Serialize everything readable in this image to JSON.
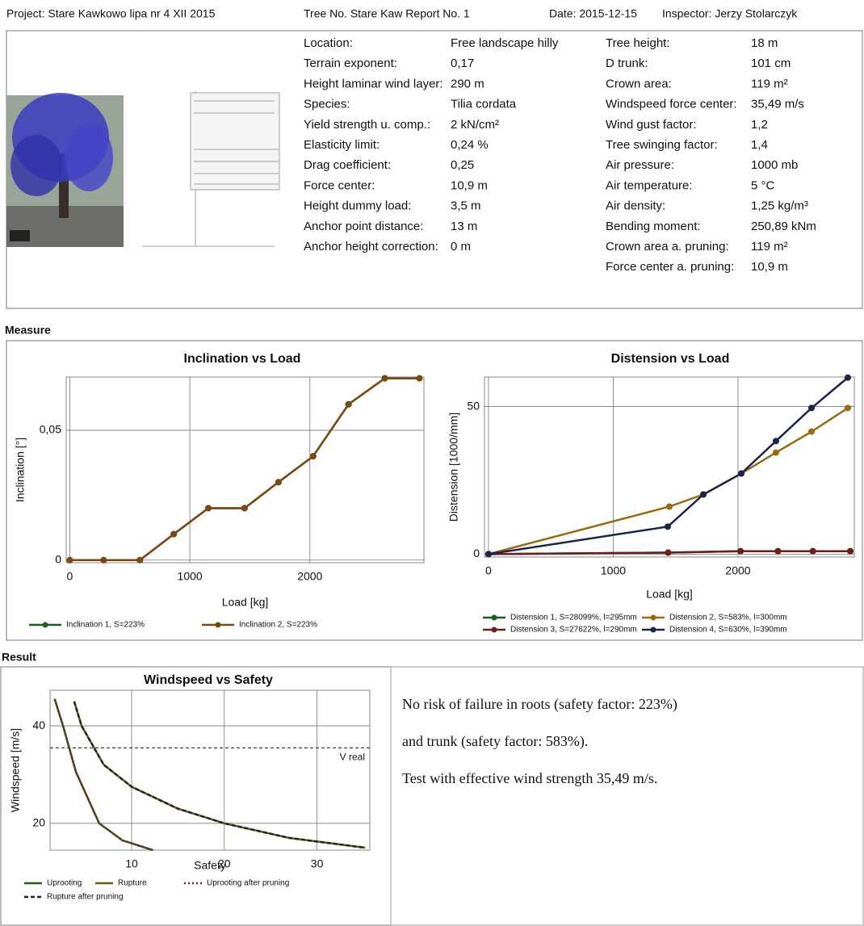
{
  "header": {
    "project": "Project: Stare Kawkowo lipa nr 4 XII 2015",
    "report": "Tree No. Stare Kaw Report No. 1",
    "date": "Date: 2015-12-15",
    "inspector": "Inspector: Jerzy Stolarczyk"
  },
  "params_left": [
    [
      "Location:",
      "Free landscape hilly"
    ],
    [
      "Terrain exponent:",
      "0,17"
    ],
    [
      "Height laminar wind layer:",
      "290 m"
    ],
    [
      "Species:",
      "Tilia cordata"
    ],
    [
      "Yield strength u. comp.:",
      "2 kN/cm²"
    ],
    [
      "Elasticity limit:",
      "0,24 %"
    ],
    [
      "Drag coefficient:",
      "0,25"
    ],
    [
      "Force center:",
      "10,9 m"
    ],
    [
      "Height dummy load:",
      "3,5 m"
    ],
    [
      "Anchor point distance:",
      "13 m"
    ],
    [
      "Anchor height correction:",
      "0 m"
    ]
  ],
  "params_right": [
    [
      "Tree height:",
      "18 m"
    ],
    [
      "D trunk:",
      "101 cm"
    ],
    [
      "Crown area:",
      "119 m²"
    ],
    [
      "Windspeed force center:",
      "35,49 m/s"
    ],
    [
      "Wind gust factor:",
      "1,2"
    ],
    [
      "Tree swinging factor:",
      "1,4"
    ],
    [
      "Air pressure:",
      "1000 mb"
    ],
    [
      "Air temperature:",
      "5 °C"
    ],
    [
      "Air density:",
      "1,25 kg/m³"
    ],
    [
      "Bending moment:",
      "250,89 kNm"
    ],
    [
      "Crown area a. pruning:",
      "119 m²"
    ],
    [
      "Force center a. pruning:",
      "10,9 m"
    ]
  ],
  "sections": {
    "measure": "Measure",
    "result": "Result"
  },
  "result_text": [
    "No risk of failure in roots (safety factor: 223%)",
    "and trunk (safety factor: 583%).",
    "Test with effective wind strength 35,49 m/s."
  ],
  "chart_data": [
    {
      "type": "line",
      "title": "Inclination vs Load",
      "x_label": "Load [kg]",
      "y_label": "Inclination [°]",
      "x": [
        0,
        282,
        584,
        866,
        1154,
        1456,
        1738,
        2027,
        2322,
        2624,
        2913
      ],
      "series": [
        {
          "name": "Inclination 1, S=223%",
          "color": "#1f5a1f",
          "values": [
            0,
            0,
            0,
            0.01,
            0.02,
            0.02,
            0.03,
            0.04,
            0.06,
            0.07,
            0.07
          ]
        },
        {
          "name": "Inclination 2, S=223%",
          "color": "#7a4a12",
          "values": [
            0,
            0,
            0,
            0.01,
            0.02,
            0.02,
            0.03,
            0.04,
            0.06,
            0.07,
            0.07
          ]
        }
      ],
      "xlim": [
        -30,
        2950
      ],
      "ylim": [
        -0.001,
        0.0705
      ],
      "xticks": [
        0,
        1000,
        2000
      ],
      "yticks": [
        0,
        {
          "value": 0.05,
          "label": "0,05"
        }
      ],
      "grid": true,
      "markers": true
    },
    {
      "type": "line",
      "title": "Distension vs Load",
      "x_label": "Load [kg]",
      "y_label": "Distension [1000/mm]",
      "series": [
        {
          "name": "Distension 1, S=28099%, l=295mm",
          "color": "#1f5a1f",
          "x": [
            0,
            1440,
            2020,
            2320,
            2600,
            2900
          ],
          "values": [
            0,
            0.5,
            1,
            1,
            1,
            1
          ]
        },
        {
          "name": "Distension 2, S=583%, l=300mm",
          "color": "#9a6a10",
          "x": [
            0,
            1450,
            1722,
            2026,
            2304,
            2589,
            2880
          ],
          "values": [
            0,
            16.1,
            20.2,
            27.3,
            34.4,
            41.5,
            49.5
          ]
        },
        {
          "name": "Distension 3, S=27622%, l=290mm",
          "color": "#6e1c1c",
          "x": [
            0,
            1440,
            2020,
            2320,
            2600,
            2900
          ],
          "values": [
            0,
            0.5,
            1,
            1,
            1,
            1
          ]
        },
        {
          "name": "Distension 4, S=630%, l=390mm",
          "color": "#1a2548",
          "x": [
            0,
            1437,
            1722,
            2026,
            2304,
            2589,
            2880
          ],
          "values": [
            0,
            9.3,
            20.2,
            27.3,
            38.3,
            49.5,
            59.8
          ]
        }
      ],
      "xlim": [
        -32,
        2932
      ],
      "ylim": [
        -1,
        60
      ],
      "xticks": [
        0,
        1000,
        2000
      ],
      "yticks": [
        0,
        50
      ],
      "grid": true,
      "markers": true
    },
    {
      "type": "line",
      "title": "Windspeed vs Safety",
      "x_label": "Safety",
      "y_label": "Windspeed [m/s]",
      "series": [
        {
          "name": "Uprooting",
          "color": "#2a5a1a",
          "style": "solid",
          "x": [
            1.7,
            2.6,
            4,
            6.5,
            9,
            12.3
          ],
          "values": [
            45.5,
            40,
            30.5,
            20,
            16.5,
            14.5
          ]
        },
        {
          "name": "Rupture",
          "color": "#6b5614",
          "style": "solid",
          "x": [
            3.8,
            4.6,
            7,
            10,
            15,
            20,
            27,
            35.2
          ],
          "values": [
            45,
            40,
            32,
            27.5,
            23,
            20,
            17,
            15
          ]
        },
        {
          "name": "Uprooting after pruning",
          "color": "#8b1a2a",
          "style": "dotted",
          "x": [
            1.7,
            2.6,
            4,
            6.5,
            9,
            12.3
          ],
          "values": [
            45.5,
            40,
            30.5,
            20,
            16.5,
            14.5
          ]
        },
        {
          "name": "Rupture after pruning",
          "color": "#222222",
          "style": "dashed",
          "x": [
            3.8,
            4.6,
            7,
            10,
            15,
            20,
            27,
            35.2
          ],
          "values": [
            45,
            40,
            32,
            27.5,
            23,
            20,
            17,
            15
          ]
        }
      ],
      "annotation": {
        "label": "V real",
        "value": 35.49
      },
      "xlim": [
        1.2,
        35.7
      ],
      "ylim": [
        14.5,
        47.3
      ],
      "xticks": [
        10,
        20,
        30
      ],
      "yticks": [
        20,
        40
      ],
      "grid": true,
      "markers": false
    }
  ]
}
